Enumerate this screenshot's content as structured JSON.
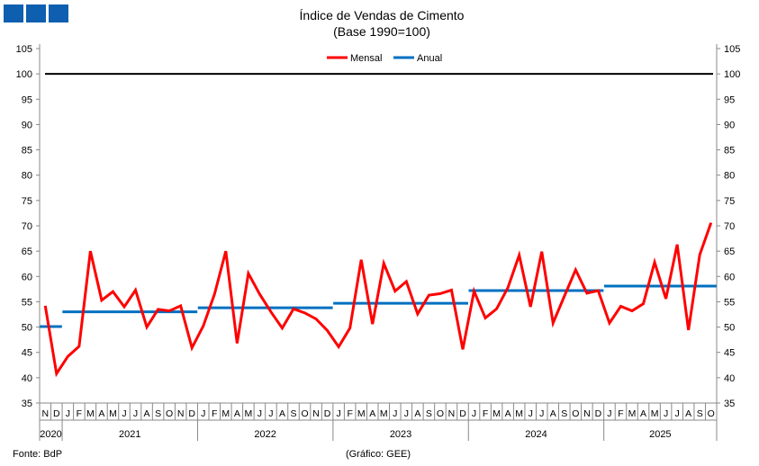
{
  "chart_data": {
    "type": "line",
    "title": "Índice de Vendas de Cimento",
    "subtitle": "(Base 1990=100)",
    "ylim": [
      35,
      105
    ],
    "yticks": [
      35,
      40,
      45,
      50,
      55,
      60,
      65,
      70,
      75,
      80,
      85,
      90,
      95,
      100,
      105
    ],
    "reference_line": 100,
    "legend": [
      "Mensal",
      "Anual"
    ],
    "legend_position": "top-center",
    "month_labels": [
      "N",
      "D",
      "J",
      "F",
      "M",
      "A",
      "M",
      "J",
      "J",
      "A",
      "S",
      "O",
      "N",
      "D",
      "J",
      "F",
      "M",
      "A",
      "M",
      "J",
      "J",
      "A",
      "S",
      "O",
      "N",
      "D",
      "J",
      "F",
      "M",
      "A",
      "M",
      "J",
      "J",
      "A",
      "S",
      "O",
      "N",
      "D",
      "J",
      "F",
      "M",
      "A",
      "M",
      "J",
      "J",
      "A",
      "S",
      "O",
      "N",
      "D",
      "J",
      "F",
      "M",
      "A",
      "M",
      "J",
      "J",
      "A",
      "S",
      "O"
    ],
    "years": [
      {
        "label": "2020",
        "start": 0,
        "end": 1
      },
      {
        "label": "2021",
        "start": 2,
        "end": 13
      },
      {
        "label": "2022",
        "start": 14,
        "end": 25
      },
      {
        "label": "2023",
        "start": 26,
        "end": 37
      },
      {
        "label": "2024",
        "start": 38,
        "end": 49
      },
      {
        "label": "2025",
        "start": 50,
        "end": 59
      }
    ],
    "series": [
      {
        "name": "Mensal",
        "color": "#ff0000",
        "values": [
          54.2,
          40.8,
          44.2,
          46.2,
          65,
          55.3,
          57,
          54,
          57.3,
          50,
          53.5,
          53.2,
          54.2,
          45.9,
          50.2,
          56.5,
          65,
          46.8,
          60.6,
          56.5,
          53,
          49.8,
          53.6,
          52.8,
          51.6,
          49.3,
          46.1,
          49.8,
          63.3,
          50.6,
          62.6,
          57.1,
          59,
          52.6,
          56.3,
          56.6,
          57.3,
          45.6,
          57.1,
          51.8,
          53.6,
          57.8,
          64.2,
          54,
          64.9,
          50.8,
          56.1,
          61.3,
          56.7,
          57.2,
          50.8,
          54.1,
          53.2,
          54.6,
          62.8,
          55.6,
          66.3,
          49.4,
          64.3,
          70.6
        ]
      },
      {
        "name": "Anual",
        "color": "#0070c0",
        "segments": [
          {
            "year": "2020",
            "value": 50.1
          },
          {
            "year": "2021",
            "value": 53.0
          },
          {
            "year": "2022",
            "value": 53.8
          },
          {
            "year": "2023",
            "value": 54.7
          },
          {
            "year": "2024",
            "value": 57.2
          },
          {
            "year": "2025",
            "value": 58.1
          }
        ]
      }
    ]
  },
  "footer": {
    "source": "Fonte: BdP",
    "credit": "(Gráfico: GEE)"
  }
}
